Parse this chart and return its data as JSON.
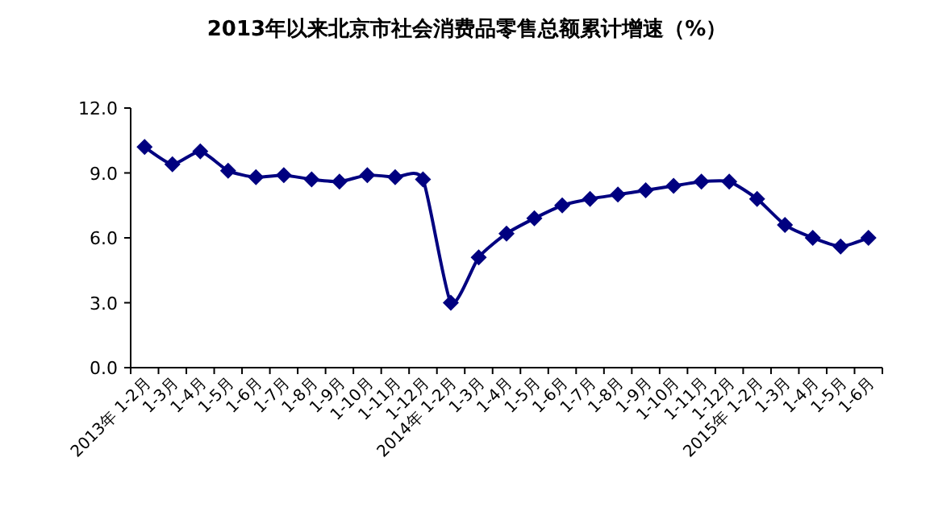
{
  "chart_data": {
    "type": "line",
    "title": "2013年以来北京市社会消费品零售总额累计增速（%）",
    "categories": [
      "2013年 1-2月",
      "1-3月",
      "1-4月",
      "1-5月",
      "1-6月",
      "1-7月",
      "1-8月",
      "1-9月",
      "1-10月",
      "1-11月",
      "1-12月",
      "2014年 1-2月",
      "1-3月",
      "1-4月",
      "1-5月",
      "1-6月",
      "1-7月",
      "1-8月",
      "1-9月",
      "1-10月",
      "1-11月",
      "1-12月",
      "2015年 1-2月",
      "1-3月",
      "1-4月",
      "1-5月",
      "1-6月"
    ],
    "series": [
      {
        "color": "#000080",
        "values": [
          10.2,
          9.4,
          10.0,
          9.1,
          8.8,
          8.9,
          8.7,
          8.6,
          8.9,
          8.8,
          8.7,
          3.0,
          5.1,
          6.2,
          6.9,
          7.5,
          7.8,
          8.0,
          8.2,
          8.4,
          8.6,
          8.6,
          7.8,
          6.6,
          6.0,
          5.6,
          6.0
        ]
      }
    ],
    "ylim": [
      0,
      12
    ],
    "yticks": [
      {
        "value": 0,
        "label": "0.0"
      },
      {
        "value": 3,
        "label": "3.0"
      },
      {
        "value": 6,
        "label": "6.0"
      },
      {
        "value": 9,
        "label": "9.0"
      },
      {
        "value": 12,
        "label": "12.0"
      }
    ],
    "marker": "diamond",
    "grid": false
  }
}
